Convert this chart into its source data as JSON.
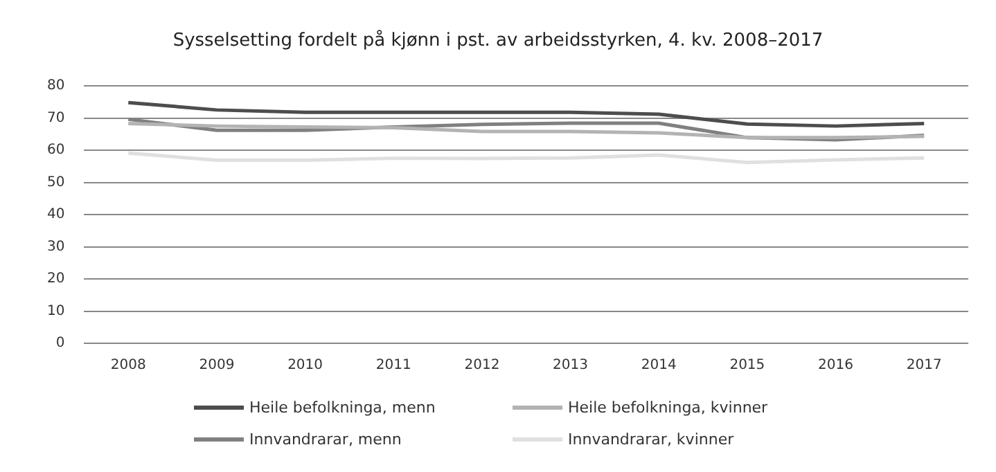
{
  "chart_data": {
    "type": "line",
    "title": "Sysselsetting fordelt på kjønn i pst. av arbeidsstyrken, 4. kv. 2008–2017",
    "categories": [
      "2008",
      "2009",
      "2010",
      "2011",
      "2012",
      "2013",
      "2014",
      "2015",
      "2016",
      "2017"
    ],
    "series": [
      {
        "name": "Heile befolkninga, menn",
        "color": "#4d4d4d",
        "values": [
          74.8,
          72.5,
          71.8,
          71.8,
          71.8,
          71.8,
          71.2,
          68.1,
          67.5,
          68.3
        ]
      },
      {
        "name": "Heile befolkninga, kvinner",
        "color": "#b3b3b3",
        "values": [
          68.3,
          67.5,
          67.2,
          67,
          65.8,
          65.8,
          65.4,
          63.9,
          63.9,
          64.3
        ]
      },
      {
        "name": "Innvandrarar, menn",
        "color": "#808080",
        "values": [
          69.6,
          66.2,
          66.2,
          67.2,
          68,
          68.4,
          68.4,
          63.9,
          63.2,
          64.6
        ]
      },
      {
        "name": "Innvandrarar, kvinner",
        "color": "#e0e0e0",
        "values": [
          59.1,
          56.9,
          56.9,
          57.5,
          57.4,
          57.6,
          58.5,
          56.2,
          57,
          57.6
        ]
      }
    ],
    "ylim": [
      0,
      80
    ],
    "yticks": [
      0,
      10,
      20,
      30,
      40,
      50,
      60,
      70,
      80
    ],
    "grid": "y",
    "legend": "bottom",
    "marker": "none",
    "line_style": "solid"
  }
}
